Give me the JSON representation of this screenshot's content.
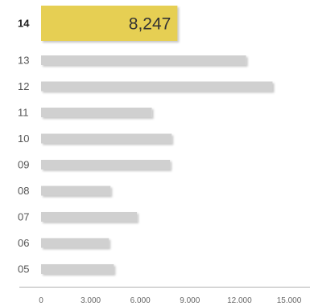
{
  "chart_data": {
    "type": "bar",
    "orientation": "horizontal",
    "categories": [
      "14",
      "13",
      "12",
      "11",
      "10",
      "09",
      "08",
      "07",
      "06",
      "05"
    ],
    "values": [
      8247,
      12400,
      14000,
      6700,
      7900,
      7800,
      4200,
      5800,
      4100,
      4400
    ],
    "highlight": {
      "category": "14",
      "value_label": "8,247",
      "color": "#e6cf52"
    },
    "bar_color": "#d0d0d0",
    "xlim": [
      0,
      15000
    ],
    "x_ticks": [
      {
        "value": 0,
        "label": "0"
      },
      {
        "value": 3000,
        "label": "3.000"
      },
      {
        "value": 6000,
        "label": "6.000"
      },
      {
        "value": 9000,
        "label": "9.000"
      },
      {
        "value": 12000,
        "label": "12.000"
      },
      {
        "value": 15000,
        "label": "15.000"
      }
    ],
    "title": "",
    "xlabel": "",
    "ylabel": "",
    "grid": false
  }
}
